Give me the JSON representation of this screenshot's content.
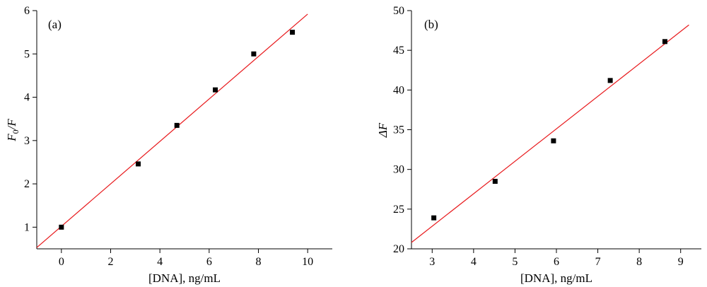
{
  "chart_data": [
    {
      "type": "scatter",
      "panel_label": "(a)",
      "xlabel": "[DNA], ng/mL",
      "ylabel_main": "F",
      "ylabel_sub": "0",
      "ylabel_rest": "/F",
      "xlim": [
        -1,
        11
      ],
      "ylim": [
        0.5,
        6
      ],
      "xticks": [
        0,
        2,
        4,
        6,
        8,
        10
      ],
      "yticks": [
        1,
        2,
        3,
        4,
        5,
        6
      ],
      "points": [
        {
          "x": 0,
          "y": 1.0
        },
        {
          "x": 3.12,
          "y": 2.46
        },
        {
          "x": 4.69,
          "y": 3.35
        },
        {
          "x": 6.25,
          "y": 4.17
        },
        {
          "x": 7.81,
          "y": 5.0
        },
        {
          "x": 9.38,
          "y": 5.5
        }
      ],
      "fit_line": {
        "x": [
          -1,
          10.0
        ],
        "y": [
          0.53,
          5.92
        ]
      },
      "grid": false,
      "marker_color": "#000000",
      "line_color": "#e8191c"
    },
    {
      "type": "scatter",
      "panel_label": "(b)",
      "xlabel": "[DNA], ng/mL",
      "ylabel_main": "ΔF",
      "xlim": [
        2.5,
        9.5
      ],
      "ylim": [
        20,
        50
      ],
      "xticks": [
        3,
        4,
        5,
        6,
        7,
        8,
        9
      ],
      "yticks": [
        20,
        25,
        30,
        35,
        40,
        45,
        50
      ],
      "points": [
        {
          "x": 3.04,
          "y": 23.9
        },
        {
          "x": 4.52,
          "y": 28.5
        },
        {
          "x": 5.93,
          "y": 33.6
        },
        {
          "x": 7.3,
          "y": 41.2
        },
        {
          "x": 8.62,
          "y": 46.1
        }
      ],
      "fit_line": {
        "x": [
          2.5,
          9.2
        ],
        "y": [
          20.8,
          48.2
        ]
      },
      "grid": false,
      "marker_color": "#000000",
      "line_color": "#e8191c"
    }
  ]
}
